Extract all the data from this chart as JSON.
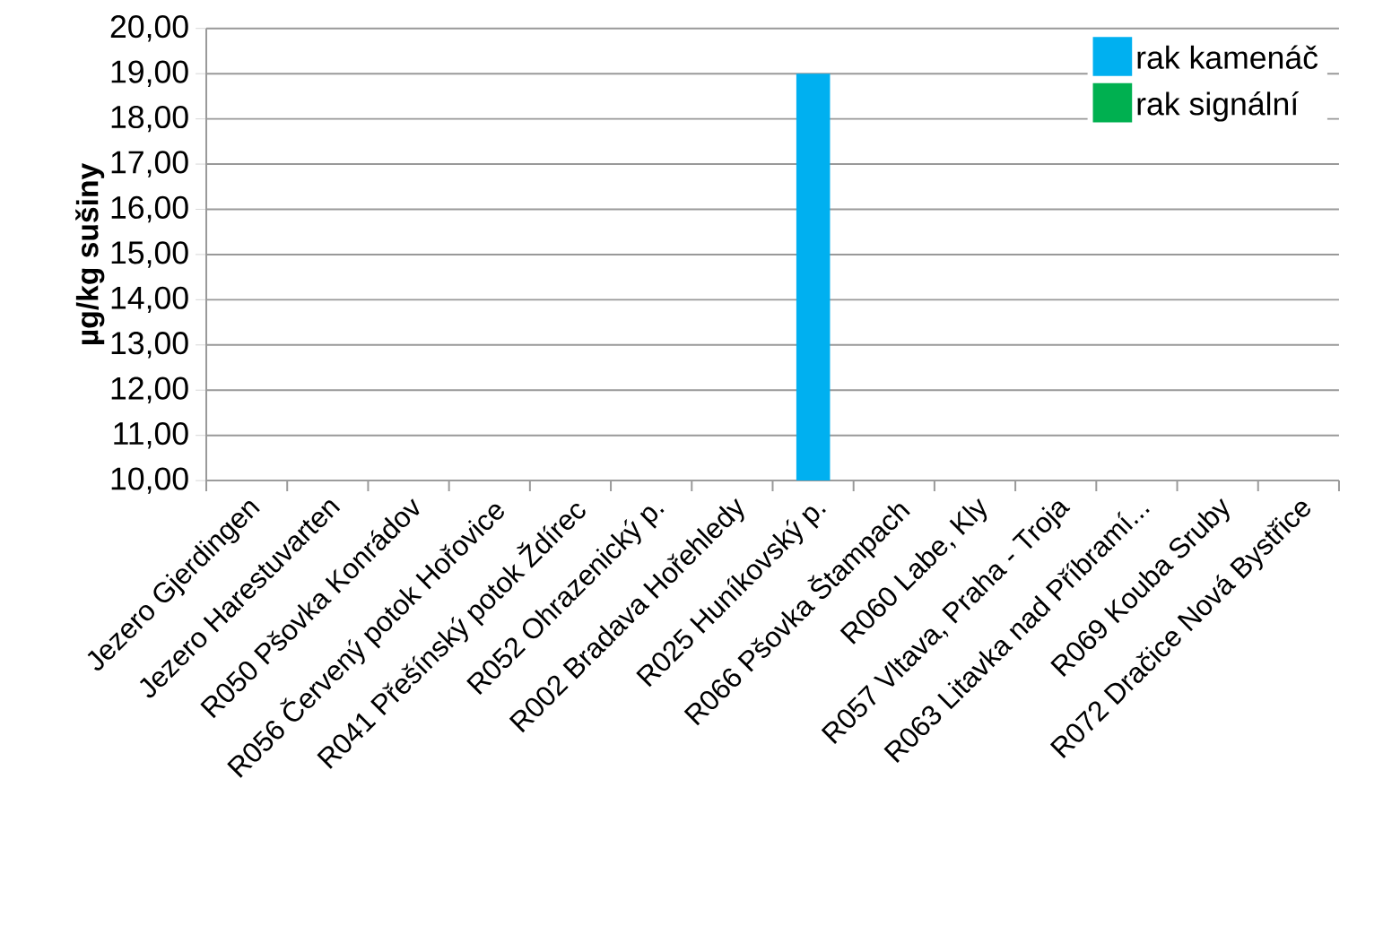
{
  "chart_data": {
    "type": "bar",
    "ylabel": "µg/kg sušiny",
    "categories": [
      "Jezero Gjerdingen",
      "Jezero Harestuvarten",
      "R050 Pšovka Konrádov",
      "R056 Červený potok Hořovice",
      "R041 Přešínský potok Ždírec",
      "R052 Ohrazenický p.",
      "R002  Bradava Hořehledy",
      "R025 Huníkovský p.",
      "R066 Pšovka Štampach",
      "R060  Labe, Kly",
      "R057  Vltava, Praha - Troja",
      "R063 Litavka nad Příbramí...",
      "R069  Kouba Sruby",
      "R072  Dračice Nová Bystřice"
    ],
    "series": [
      {
        "name": "rak kamenáč",
        "color": "#00b0f0",
        "values": [
          null,
          null,
          null,
          null,
          null,
          null,
          null,
          19,
          null,
          null,
          null,
          null,
          null,
          null
        ]
      },
      {
        "name": "rak signální",
        "color": "#00b050",
        "values": [
          null,
          null,
          null,
          null,
          null,
          null,
          null,
          null,
          null,
          null,
          null,
          null,
          null,
          null
        ]
      }
    ],
    "ylim": [
      10,
      20
    ],
    "yticks": [
      {
        "value": 10,
        "label": "10,00"
      },
      {
        "value": 11,
        "label": "11,00"
      },
      {
        "value": 12,
        "label": "12,00"
      },
      {
        "value": 13,
        "label": "13,00"
      },
      {
        "value": 14,
        "label": "14,00"
      },
      {
        "value": 15,
        "label": "15,00"
      },
      {
        "value": 16,
        "label": "16,00"
      },
      {
        "value": 17,
        "label": "17,00"
      },
      {
        "value": 18,
        "label": "18,00"
      },
      {
        "value": 19,
        "label": "19,00"
      },
      {
        "value": 20,
        "label": "20,00"
      }
    ],
    "grid": "y",
    "legend": "top right"
  }
}
